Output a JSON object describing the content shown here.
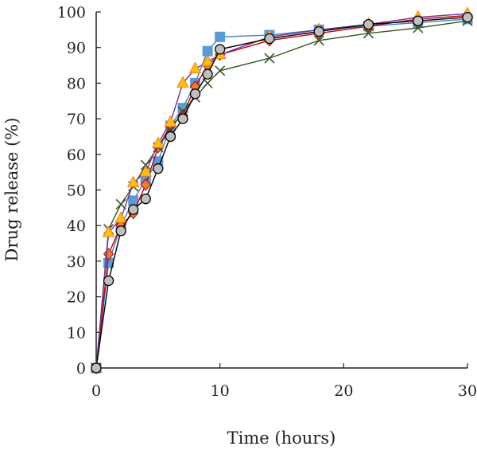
{
  "chart_data": {
    "type": "line",
    "xlabel": "Time (hours)",
    "ylabel": "Drug release (%)",
    "xlim": [
      0,
      30
    ],
    "ylim": [
      0,
      100
    ],
    "xticks": [
      0,
      10,
      20,
      30
    ],
    "yticks": [
      0,
      10,
      20,
      30,
      40,
      50,
      60,
      70,
      80,
      90,
      100
    ],
    "grid": false,
    "legend": "none",
    "series": [
      {
        "marker": "square",
        "color": "#3f7fc6",
        "fill": "#5b9bd5",
        "stroke": "#5b9bd5",
        "points": [
          [
            0,
            0
          ],
          [
            1,
            29.5
          ],
          [
            2,
            40
          ],
          [
            3,
            47
          ],
          [
            4,
            53
          ],
          [
            5,
            58
          ],
          [
            6,
            68
          ],
          [
            7,
            73
          ],
          [
            8,
            80
          ],
          [
            9,
            89
          ],
          [
            10,
            93
          ],
          [
            14,
            93.5
          ],
          [
            18,
            95
          ],
          [
            22,
            96
          ],
          [
            26,
            97
          ],
          [
            30,
            98
          ]
        ]
      },
      {
        "marker": "diamond",
        "color": "#c00000",
        "fill": "#ed7d31",
        "stroke": "#c00000",
        "points": [
          [
            0,
            0
          ],
          [
            1,
            32
          ],
          [
            2,
            40
          ],
          [
            3,
            43.5
          ],
          [
            4,
            51.5
          ],
          [
            5,
            62
          ],
          [
            6,
            68
          ],
          [
            7,
            71
          ],
          [
            8,
            79
          ],
          [
            9,
            85
          ],
          [
            10,
            88
          ],
          [
            14,
            92
          ],
          [
            18,
            94
          ],
          [
            22,
            96
          ],
          [
            26,
            98
          ],
          [
            30,
            99
          ]
        ]
      },
      {
        "marker": "x",
        "color": "#375623",
        "fill": "none",
        "stroke": "#375623",
        "points": [
          [
            0,
            0
          ],
          [
            1,
            39
          ],
          [
            2,
            46
          ],
          [
            3,
            51
          ],
          [
            4,
            57
          ],
          [
            5,
            62
          ],
          [
            6,
            67
          ],
          [
            7,
            72
          ],
          [
            8,
            76
          ],
          [
            9,
            80
          ],
          [
            10,
            83.5
          ],
          [
            14,
            87
          ],
          [
            18,
            92
          ],
          [
            22,
            94
          ],
          [
            26,
            95.5
          ],
          [
            30,
            97.5
          ]
        ]
      },
      {
        "marker": "triangle",
        "color": "#7030a0",
        "fill": "#ffc000",
        "stroke": "#ed7d31",
        "points": [
          [
            0,
            0
          ],
          [
            1,
            38
          ],
          [
            2,
            42
          ],
          [
            3,
            52
          ],
          [
            4,
            55
          ],
          [
            5,
            63
          ],
          [
            6,
            69
          ],
          [
            7,
            80
          ],
          [
            8,
            84
          ],
          [
            9,
            86
          ],
          [
            10,
            88
          ],
          [
            14,
            93
          ],
          [
            18,
            95
          ],
          [
            22,
            96.5
          ],
          [
            26,
            98.5
          ],
          [
            30,
            99.5
          ]
        ]
      },
      {
        "marker": "circle",
        "color": "#000000",
        "fill": "#bfbfbf",
        "stroke": "#000000",
        "points": [
          [
            0,
            0
          ],
          [
            1,
            24.5
          ],
          [
            2,
            38.5
          ],
          [
            3,
            44.5
          ],
          [
            4,
            47.5
          ],
          [
            5,
            56
          ],
          [
            6,
            65
          ],
          [
            7,
            70
          ],
          [
            8,
            77
          ],
          [
            9,
            82.5
          ],
          [
            10,
            89.5
          ],
          [
            14,
            92.5
          ],
          [
            18,
            94.5
          ],
          [
            22,
            96.5
          ],
          [
            26,
            97.5
          ],
          [
            30,
            98.5
          ]
        ]
      }
    ]
  }
}
